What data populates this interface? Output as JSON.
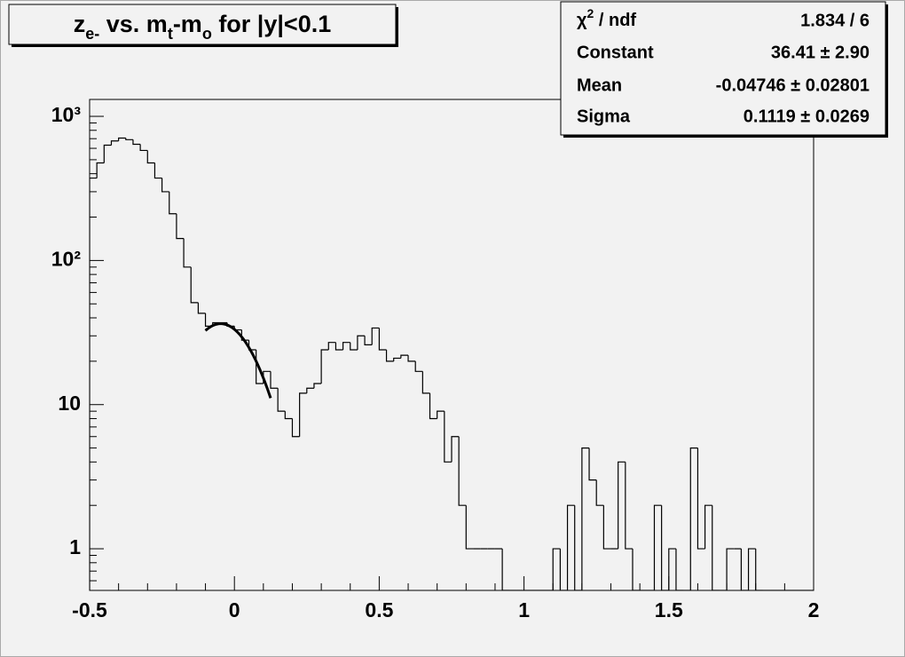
{
  "chart_data": {
    "type": "histogram",
    "title": {
      "segments": [
        {
          "text": "z"
        },
        {
          "text": "e-",
          "sub": true
        },
        {
          "text": " vs. m"
        },
        {
          "text": "t",
          "sub": true
        },
        {
          "text": "-m"
        },
        {
          "text": "o",
          "sub": true
        },
        {
          "text": " for |y|<0.1"
        }
      ]
    },
    "bins": [
      -0.5,
      -0.475,
      -0.45,
      -0.425,
      -0.4,
      -0.375,
      -0.35,
      -0.325,
      -0.3,
      -0.275,
      -0.25,
      -0.225,
      -0.2,
      -0.175,
      -0.15,
      -0.125,
      -0.1,
      -0.075,
      -0.05,
      -0.025,
      0,
      0.025,
      0.05,
      0.075,
      0.1,
      0.125,
      0.15,
      0.175,
      0.2,
      0.225,
      0.25,
      0.275,
      0.3,
      0.325,
      0.35,
      0.375,
      0.4,
      0.425,
      0.45,
      0.475,
      0.5,
      0.525,
      0.55,
      0.575,
      0.6,
      0.625,
      0.65,
      0.675,
      0.7,
      0.725,
      0.75,
      0.775,
      0.8,
      0.825,
      0.85,
      0.875,
      0.9,
      0.925,
      0.95,
      0.975,
      1,
      1.025,
      1.05,
      1.075,
      1.1,
      1.125,
      1.15,
      1.175,
      1.2,
      1.225,
      1.25,
      1.275,
      1.3,
      1.325,
      1.35,
      1.375,
      1.4,
      1.425,
      1.45,
      1.475,
      1.5,
      1.525,
      1.55,
      1.575,
      1.6,
      1.625,
      1.65,
      1.675,
      1.7,
      1.725,
      1.75,
      1.775,
      1.8,
      1.825,
      1.85,
      1.875,
      1.9,
      1.925,
      1.95,
      1.975,
      2
    ],
    "values": [
      373,
      475,
      631,
      675,
      707,
      689,
      640,
      580,
      475,
      373,
      300,
      211,
      142,
      90,
      51,
      43,
      35,
      37,
      37,
      35,
      33,
      28,
      24,
      14,
      17,
      13,
      9,
      8,
      6,
      12,
      13,
      14,
      24,
      27,
      24,
      27,
      24,
      30,
      26,
      34,
      24,
      20,
      21,
      22,
      20,
      17,
      12,
      8,
      9,
      4,
      6,
      2,
      1,
      1,
      1,
      1,
      1,
      0,
      0,
      0,
      0,
      0,
      0,
      0,
      1,
      0,
      2,
      0,
      5,
      3,
      2,
      1,
      1,
      4,
      1,
      0,
      0,
      0,
      2,
      0,
      1,
      0,
      0,
      5,
      1,
      2,
      0,
      0,
      1,
      1,
      0,
      1,
      0,
      0,
      0,
      0,
      0,
      0,
      0,
      0
    ],
    "color": "#000000",
    "xlim": [
      -0.5,
      2
    ],
    "xticks": [
      -0.5,
      0,
      0.5,
      1,
      1.5,
      2
    ],
    "ylim": [
      0.514,
      1310
    ],
    "yscale": "log",
    "yticks": [
      1,
      10,
      {
        "value": 100,
        "label": "10²"
      },
      {
        "value": 1000,
        "label": "10³"
      }
    ],
    "fit": {
      "type": "gaus",
      "constant": 36.41,
      "mean": -0.04746,
      "sigma": 0.1119,
      "range": [
        -0.1,
        0.125
      ],
      "color": "#000000"
    },
    "stats": {
      "chi2": {
        "base": "χ",
        "sup": "2",
        "rest": " / ndf",
        "value": "1.834 / 6"
      },
      "rows": [
        {
          "name": "Constant",
          "value": "36.41 ± 2.90"
        },
        {
          "name": "Mean",
          "value": "-0.04746 ± 0.02801"
        },
        {
          "name": "Sigma",
          "value": "0.1119 ± 0.0269"
        }
      ]
    }
  }
}
